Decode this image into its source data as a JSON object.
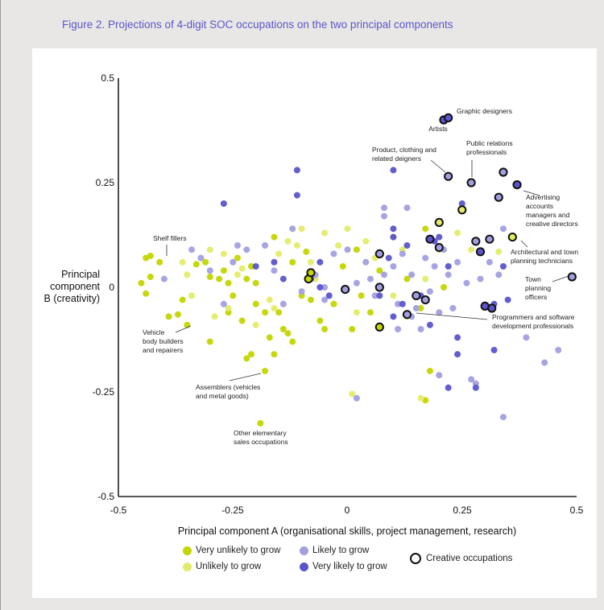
{
  "figure_title": "Figure 2. Projections of 4-digit SOC occupations on the two principal components",
  "colors": {
    "very_unlikely": "#c3d600",
    "unlikely": "#e3ec6a",
    "likely": "#a29fe0",
    "very_likely": "#5b55cc",
    "creative_ring": "#111111",
    "title": "#5b57c9"
  },
  "legend": {
    "very_unlikely": "Very unlikely to grow",
    "unlikely": "Unlikely to grow",
    "likely": "Likely to grow",
    "very_likely": "Very likely to grow",
    "creative": "Creative occupations"
  },
  "chart_data": {
    "type": "scatter",
    "title": "Figure 2. Projections of 4-digit SOC occupations on the two principal components",
    "xlabel": "Principal component A (organisational skills, project management, research)",
    "ylabel": "Principal component B (creativity)",
    "xlim": [
      -0.5,
      0.5
    ],
    "ylim": [
      -0.5,
      0.5
    ],
    "xticks": [
      "-0.5",
      "-0.25",
      "0",
      "0.25",
      "0.5"
    ],
    "yticks": [
      "0.5",
      "0.25",
      "0",
      "-0.25",
      "-0.5"
    ],
    "grid": false,
    "legend_position": "bottom",
    "categories": [
      "very_unlikely",
      "unlikely",
      "likely",
      "very_likely"
    ],
    "points": [
      {
        "x": -0.45,
        "y": 0.01,
        "c": "very_unlikely"
      },
      {
        "x": -0.44,
        "y": 0.07,
        "c": "very_unlikely"
      },
      {
        "x": -0.43,
        "y": 0.075,
        "c": "very_unlikely"
      },
      {
        "x": -0.41,
        "y": 0.06,
        "c": "very_unlikely"
      },
      {
        "x": -0.44,
        "y": -0.015,
        "c": "very_unlikely"
      },
      {
        "x": -0.43,
        "y": 0.025,
        "c": "very_unlikely"
      },
      {
        "x": -0.39,
        "y": -0.07,
        "c": "very_unlikely"
      },
      {
        "x": -0.37,
        "y": -0.065,
        "c": "very_unlikely"
      },
      {
        "x": -0.35,
        "y": -0.09,
        "c": "very_unlikely"
      },
      {
        "x": -0.36,
        "y": -0.03,
        "c": "very_unlikely"
      },
      {
        "x": -0.33,
        "y": 0.055,
        "c": "very_unlikely"
      },
      {
        "x": -0.31,
        "y": 0.06,
        "c": "very_unlikely"
      },
      {
        "x": -0.3,
        "y": 0.025,
        "c": "very_unlikely"
      },
      {
        "x": -0.28,
        "y": 0.02,
        "c": "very_unlikely"
      },
      {
        "x": -0.27,
        "y": 0.04,
        "c": "very_unlikely"
      },
      {
        "x": -0.26,
        "y": 0.01,
        "c": "very_unlikely"
      },
      {
        "x": -0.25,
        "y": -0.02,
        "c": "very_unlikely"
      },
      {
        "x": -0.3,
        "y": -0.13,
        "c": "very_unlikely"
      },
      {
        "x": -0.22,
        "y": -0.17,
        "c": "very_unlikely"
      },
      {
        "x": -0.21,
        "y": -0.16,
        "c": "very_unlikely"
      },
      {
        "x": -0.18,
        "y": -0.2,
        "c": "very_unlikely"
      },
      {
        "x": -0.19,
        "y": -0.325,
        "c": "very_unlikely"
      },
      {
        "x": -0.22,
        "y": 0.02,
        "c": "very_unlikely"
      },
      {
        "x": -0.2,
        "y": 0.01,
        "c": "very_unlikely"
      },
      {
        "x": -0.23,
        "y": -0.08,
        "c": "very_unlikely"
      },
      {
        "x": -0.26,
        "y": -0.06,
        "c": "very_unlikely"
      },
      {
        "x": -0.16,
        "y": 0.12,
        "c": "very_unlikely"
      },
      {
        "x": -0.15,
        "y": -0.06,
        "c": "very_unlikely"
      },
      {
        "x": -0.14,
        "y": -0.1,
        "c": "very_unlikely"
      },
      {
        "x": -0.12,
        "y": -0.13,
        "c": "very_unlikely"
      },
      {
        "x": -0.13,
        "y": -0.11,
        "c": "very_unlikely"
      },
      {
        "x": -0.16,
        "y": -0.16,
        "c": "very_unlikely"
      },
      {
        "x": -0.17,
        "y": -0.12,
        "c": "very_unlikely"
      },
      {
        "x": -0.18,
        "y": -0.06,
        "c": "very_unlikely"
      },
      {
        "x": -0.1,
        "y": -0.02,
        "c": "very_unlikely"
      },
      {
        "x": -0.08,
        "y": -0.03,
        "c": "very_unlikely"
      },
      {
        "x": -0.06,
        "y": -0.08,
        "c": "very_unlikely"
      },
      {
        "x": -0.03,
        "y": -0.04,
        "c": "very_unlikely"
      },
      {
        "x": -0.01,
        "y": 0.05,
        "c": "very_unlikely"
      },
      {
        "x": 0.02,
        "y": 0.09,
        "c": "very_unlikely"
      },
      {
        "x": 0.03,
        "y": -0.02,
        "c": "very_unlikely"
      },
      {
        "x": 0.05,
        "y": -0.06,
        "c": "very_unlikely"
      },
      {
        "x": 0.07,
        "y": 0.04,
        "c": "very_unlikely"
      },
      {
        "x": 0.1,
        "y": 0.12,
        "c": "very_unlikely"
      },
      {
        "x": 0.13,
        "y": 0.02,
        "c": "very_unlikely"
      },
      {
        "x": 0.16,
        "y": -0.05,
        "c": "very_unlikely"
      },
      {
        "x": 0.17,
        "y": -0.27,
        "c": "very_unlikely"
      },
      {
        "x": 0.17,
        "y": 0.14,
        "c": "very_unlikely"
      },
      {
        "x": 0.21,
        "y": 0.0,
        "c": "very_unlikely"
      },
      {
        "x": 0.18,
        "y": -0.2,
        "c": "very_unlikely"
      },
      {
        "x": -0.12,
        "y": 0.06,
        "c": "very_unlikely"
      },
      {
        "x": -0.09,
        "y": 0.085,
        "c": "very_unlikely"
      },
      {
        "x": -0.05,
        "y": -0.1,
        "c": "very_unlikely"
      },
      {
        "x": 0.01,
        "y": -0.1,
        "c": "very_unlikely"
      },
      {
        "x": -0.21,
        "y": 0.05,
        "c": "very_unlikely"
      },
      {
        "x": -0.2,
        "y": -0.04,
        "c": "very_unlikely"
      },
      {
        "x": -0.24,
        "y": 0.07,
        "c": "very_unlikely"
      },
      {
        "x": -0.36,
        "y": 0.06,
        "c": "unlikely"
      },
      {
        "x": -0.35,
        "y": 0.03,
        "c": "unlikely"
      },
      {
        "x": -0.34,
        "y": -0.02,
        "c": "unlikely"
      },
      {
        "x": -0.3,
        "y": 0.09,
        "c": "unlikely"
      },
      {
        "x": -0.29,
        "y": -0.07,
        "c": "unlikely"
      },
      {
        "x": -0.26,
        "y": -0.05,
        "c": "unlikely"
      },
      {
        "x": -0.24,
        "y": 0.03,
        "c": "unlikely"
      },
      {
        "x": -0.23,
        "y": 0.045,
        "c": "unlikely"
      },
      {
        "x": -0.2,
        "y": -0.09,
        "c": "unlikely"
      },
      {
        "x": -0.16,
        "y": -0.05,
        "c": "unlikely"
      },
      {
        "x": -0.15,
        "y": 0.08,
        "c": "unlikely"
      },
      {
        "x": -0.13,
        "y": 0.11,
        "c": "unlikely"
      },
      {
        "x": -0.11,
        "y": 0.1,
        "c": "unlikely"
      },
      {
        "x": -0.1,
        "y": 0.14,
        "c": "unlikely"
      },
      {
        "x": -0.07,
        "y": 0.02,
        "c": "unlikely"
      },
      {
        "x": -0.05,
        "y": 0.13,
        "c": "unlikely"
      },
      {
        "x": -0.02,
        "y": 0.1,
        "c": "unlikely"
      },
      {
        "x": 0.0,
        "y": 0.14,
        "c": "unlikely"
      },
      {
        "x": 0.02,
        "y": -0.06,
        "c": "unlikely"
      },
      {
        "x": 0.06,
        "y": 0.07,
        "c": "unlikely"
      },
      {
        "x": 0.1,
        "y": -0.02,
        "c": "unlikely"
      },
      {
        "x": 0.13,
        "y": -0.07,
        "c": "unlikely"
      },
      {
        "x": 0.16,
        "y": -0.265,
        "c": "unlikely"
      },
      {
        "x": 0.01,
        "y": -0.255,
        "c": "unlikely"
      },
      {
        "x": 0.2,
        "y": 0.09,
        "c": "unlikely"
      },
      {
        "x": 0.24,
        "y": 0.13,
        "c": "unlikely"
      },
      {
        "x": 0.27,
        "y": 0.09,
        "c": "unlikely"
      },
      {
        "x": 0.33,
        "y": 0.085,
        "c": "unlikely"
      },
      {
        "x": 0.17,
        "y": 0.02,
        "c": "unlikely"
      },
      {
        "x": -0.17,
        "y": -0.03,
        "c": "unlikely"
      },
      {
        "x": -0.08,
        "y": 0.06,
        "c": "unlikely"
      },
      {
        "x": 0.04,
        "y": 0.11,
        "c": "unlikely"
      },
      {
        "x": 0.12,
        "y": 0.09,
        "c": "unlikely"
      },
      {
        "x": -0.27,
        "y": 0.08,
        "c": "unlikely"
      },
      {
        "x": -0.4,
        "y": 0.02,
        "c": "likely"
      },
      {
        "x": -0.34,
        "y": 0.09,
        "c": "likely"
      },
      {
        "x": -0.32,
        "y": 0.07,
        "c": "likely"
      },
      {
        "x": -0.3,
        "y": 0.04,
        "c": "likely"
      },
      {
        "x": -0.27,
        "y": -0.04,
        "c": "likely"
      },
      {
        "x": -0.25,
        "y": 0.06,
        "c": "likely"
      },
      {
        "x": -0.22,
        "y": 0.09,
        "c": "likely"
      },
      {
        "x": -0.18,
        "y": 0.1,
        "c": "likely"
      },
      {
        "x": -0.16,
        "y": 0.04,
        "c": "likely"
      },
      {
        "x": -0.14,
        "y": -0.04,
        "c": "likely"
      },
      {
        "x": -0.12,
        "y": 0.14,
        "c": "likely"
      },
      {
        "x": -0.1,
        "y": -0.01,
        "c": "likely"
      },
      {
        "x": -0.07,
        "y": 0.03,
        "c": "likely"
      },
      {
        "x": -0.05,
        "y": 0.0,
        "c": "likely"
      },
      {
        "x": -0.03,
        "y": 0.08,
        "c": "likely"
      },
      {
        "x": 0.0,
        "y": 0.09,
        "c": "likely"
      },
      {
        "x": 0.02,
        "y": 0.01,
        "c": "likely"
      },
      {
        "x": 0.04,
        "y": 0.06,
        "c": "likely"
      },
      {
        "x": 0.06,
        "y": -0.02,
        "c": "likely"
      },
      {
        "x": 0.08,
        "y": 0.03,
        "c": "likely"
      },
      {
        "x": 0.1,
        "y": 0.05,
        "c": "likely"
      },
      {
        "x": 0.11,
        "y": -0.04,
        "c": "likely"
      },
      {
        "x": 0.12,
        "y": 0.08,
        "c": "likely"
      },
      {
        "x": 0.13,
        "y": 0.19,
        "c": "likely"
      },
      {
        "x": 0.14,
        "y": 0.03,
        "c": "likely"
      },
      {
        "x": 0.15,
        "y": -0.05,
        "c": "likely"
      },
      {
        "x": 0.17,
        "y": 0.07,
        "c": "likely"
      },
      {
        "x": 0.18,
        "y": -0.01,
        "c": "likely"
      },
      {
        "x": 0.19,
        "y": 0.05,
        "c": "likely"
      },
      {
        "x": 0.2,
        "y": -0.06,
        "c": "likely"
      },
      {
        "x": 0.22,
        "y": 0.03,
        "c": "likely"
      },
      {
        "x": 0.23,
        "y": -0.05,
        "c": "likely"
      },
      {
        "x": 0.24,
        "y": 0.06,
        "c": "likely"
      },
      {
        "x": 0.16,
        "y": -0.1,
        "c": "likely"
      },
      {
        "x": 0.11,
        "y": -0.1,
        "c": "likely"
      },
      {
        "x": 0.2,
        "y": -0.21,
        "c": "likely"
      },
      {
        "x": 0.27,
        "y": -0.22,
        "c": "likely"
      },
      {
        "x": 0.28,
        "y": -0.23,
        "c": "likely"
      },
      {
        "x": 0.34,
        "y": -0.31,
        "c": "likely"
      },
      {
        "x": 0.43,
        "y": -0.18,
        "c": "likely"
      },
      {
        "x": 0.46,
        "y": -0.15,
        "c": "likely"
      },
      {
        "x": 0.39,
        "y": -0.12,
        "c": "likely"
      },
      {
        "x": 0.02,
        "y": -0.265,
        "c": "likely"
      },
      {
        "x": 0.34,
        "y": 0.14,
        "c": "likely"
      },
      {
        "x": 0.31,
        "y": 0.06,
        "c": "likely"
      },
      {
        "x": 0.33,
        "y": 0.03,
        "c": "likely"
      },
      {
        "x": 0.29,
        "y": 0.02,
        "c": "likely"
      },
      {
        "x": 0.26,
        "y": 0.01,
        "c": "likely"
      },
      {
        "x": 0.08,
        "y": 0.19,
        "c": "likely"
      },
      {
        "x": 0.08,
        "y": 0.17,
        "c": "likely"
      },
      {
        "x": 0.21,
        "y": 0.09,
        "c": "likely"
      },
      {
        "x": -0.05,
        "y": -0.03,
        "c": "likely"
      },
      {
        "x": 0.05,
        "y": 0.02,
        "c": "likely"
      },
      {
        "x": 0.14,
        "y": -0.07,
        "c": "likely"
      },
      {
        "x": -0.24,
        "y": 0.1,
        "c": "likely"
      },
      {
        "x": -0.27,
        "y": 0.2,
        "c": "very_likely"
      },
      {
        "x": -0.11,
        "y": 0.28,
        "c": "very_likely"
      },
      {
        "x": -0.11,
        "y": 0.22,
        "c": "very_likely"
      },
      {
        "x": -0.2,
        "y": 0.05,
        "c": "very_likely"
      },
      {
        "x": -0.16,
        "y": 0.06,
        "c": "very_likely"
      },
      {
        "x": -0.14,
        "y": 0.02,
        "c": "very_likely"
      },
      {
        "x": -0.08,
        "y": 0.02,
        "c": "very_likely"
      },
      {
        "x": -0.06,
        "y": 0.0,
        "c": "very_likely"
      },
      {
        "x": -0.04,
        "y": -0.02,
        "c": "very_likely"
      },
      {
        "x": -0.06,
        "y": 0.06,
        "c": "very_likely"
      },
      {
        "x": 0.1,
        "y": 0.28,
        "c": "very_likely"
      },
      {
        "x": 0.1,
        "y": 0.14,
        "c": "very_likely"
      },
      {
        "x": 0.1,
        "y": 0.12,
        "c": "very_likely"
      },
      {
        "x": 0.09,
        "y": 0.07,
        "c": "very_likely"
      },
      {
        "x": 0.13,
        "y": 0.1,
        "c": "very_likely"
      },
      {
        "x": 0.07,
        "y": -0.02,
        "c": "very_likely"
      },
      {
        "x": 0.12,
        "y": -0.04,
        "c": "very_likely"
      },
      {
        "x": 0.1,
        "y": -0.07,
        "c": "very_likely"
      },
      {
        "x": 0.16,
        "y": -0.02,
        "c": "very_likely"
      },
      {
        "x": 0.18,
        "y": -0.09,
        "c": "very_likely"
      },
      {
        "x": 0.22,
        "y": 0.05,
        "c": "very_likely"
      },
      {
        "x": 0.24,
        "y": -0.12,
        "c": "very_likely"
      },
      {
        "x": 0.24,
        "y": -0.16,
        "c": "very_likely"
      },
      {
        "x": 0.22,
        "y": -0.24,
        "c": "very_likely"
      },
      {
        "x": 0.28,
        "y": -0.24,
        "c": "very_likely"
      },
      {
        "x": 0.35,
        "y": -0.03,
        "c": "very_likely"
      },
      {
        "x": 0.34,
        "y": 0.05,
        "c": "very_likely"
      },
      {
        "x": 0.32,
        "y": -0.15,
        "c": "very_likely"
      },
      {
        "x": 0.25,
        "y": 0.2,
        "c": "very_likely"
      },
      {
        "x": 0.19,
        "y": 0.11,
        "c": "very_likely"
      },
      {
        "x": 0.2,
        "y": 0.12,
        "c": "very_likely"
      },
      {
        "x": 0.32,
        "y": -0.04,
        "c": "very_likely"
      }
    ],
    "creative_points": [
      {
        "x": 0.21,
        "y": 0.4,
        "c": "very_likely"
      },
      {
        "x": 0.22,
        "y": 0.405,
        "c": "very_likely"
      },
      {
        "x": 0.22,
        "y": 0.265,
        "c": "likely"
      },
      {
        "x": 0.27,
        "y": 0.25,
        "c": "likely"
      },
      {
        "x": 0.34,
        "y": 0.275,
        "c": "likely"
      },
      {
        "x": 0.37,
        "y": 0.245,
        "c": "very_likely"
      },
      {
        "x": 0.33,
        "y": 0.215,
        "c": "likely"
      },
      {
        "x": 0.25,
        "y": 0.185,
        "c": "unlikely"
      },
      {
        "x": 0.2,
        "y": 0.155,
        "c": "unlikely"
      },
      {
        "x": 0.18,
        "y": 0.115,
        "c": "very_likely"
      },
      {
        "x": 0.2,
        "y": 0.095,
        "c": "likely"
      },
      {
        "x": 0.28,
        "y": 0.11,
        "c": "likely"
      },
      {
        "x": 0.31,
        "y": 0.115,
        "c": "likely"
      },
      {
        "x": 0.29,
        "y": 0.085,
        "c": "very_likely"
      },
      {
        "x": 0.36,
        "y": 0.12,
        "c": "unlikely"
      },
      {
        "x": 0.49,
        "y": 0.025,
        "c": "likely"
      },
      {
        "x": 0.3,
        "y": -0.045,
        "c": "very_likely"
      },
      {
        "x": 0.315,
        "y": -0.05,
        "c": "very_likely"
      },
      {
        "x": 0.07,
        "y": 0.08,
        "c": "likely"
      },
      {
        "x": 0.07,
        "y": 0.0,
        "c": "likely"
      },
      {
        "x": 0.15,
        "y": -0.02,
        "c": "likely"
      },
      {
        "x": 0.17,
        "y": -0.03,
        "c": "likely"
      },
      {
        "x": 0.13,
        "y": -0.065,
        "c": "likely"
      },
      {
        "x": 0.07,
        "y": -0.095,
        "c": "very_unlikely"
      },
      {
        "x": -0.005,
        "y": -0.005,
        "c": "likely"
      },
      {
        "x": -0.085,
        "y": 0.02,
        "c": "very_unlikely"
      },
      {
        "x": -0.08,
        "y": 0.035,
        "c": "very_unlikely"
      }
    ],
    "annotations": [
      {
        "label": "Graphic designers",
        "x": 0.22,
        "y": 0.405
      },
      {
        "label": "Artists",
        "x": 0.21,
        "y": 0.4
      },
      {
        "label": "Product, clothing and related deigners",
        "x": 0.22,
        "y": 0.265
      },
      {
        "label": "Public relations professionals",
        "x": 0.27,
        "y": 0.25
      },
      {
        "label": "Advertising accounts managers and creative directors",
        "x": 0.37,
        "y": 0.245
      },
      {
        "label": "Shelf fillers",
        "x": -0.41,
        "y": 0.06
      },
      {
        "label": "Architectural and town planning technicians",
        "x": 0.36,
        "y": 0.12
      },
      {
        "label": "Town planning officers",
        "x": 0.49,
        "y": 0.025
      },
      {
        "label": "Programmers and software development professionals",
        "x": 0.13,
        "y": -0.065
      },
      {
        "label": "Vehicle body builders and repairers",
        "x": -0.34,
        "y": -0.09
      },
      {
        "label": "Assemblers (vehicles and metal goods)",
        "x": -0.18,
        "y": -0.2
      },
      {
        "label": "Other elementary sales occupations",
        "x": -0.19,
        "y": -0.325
      }
    ]
  }
}
